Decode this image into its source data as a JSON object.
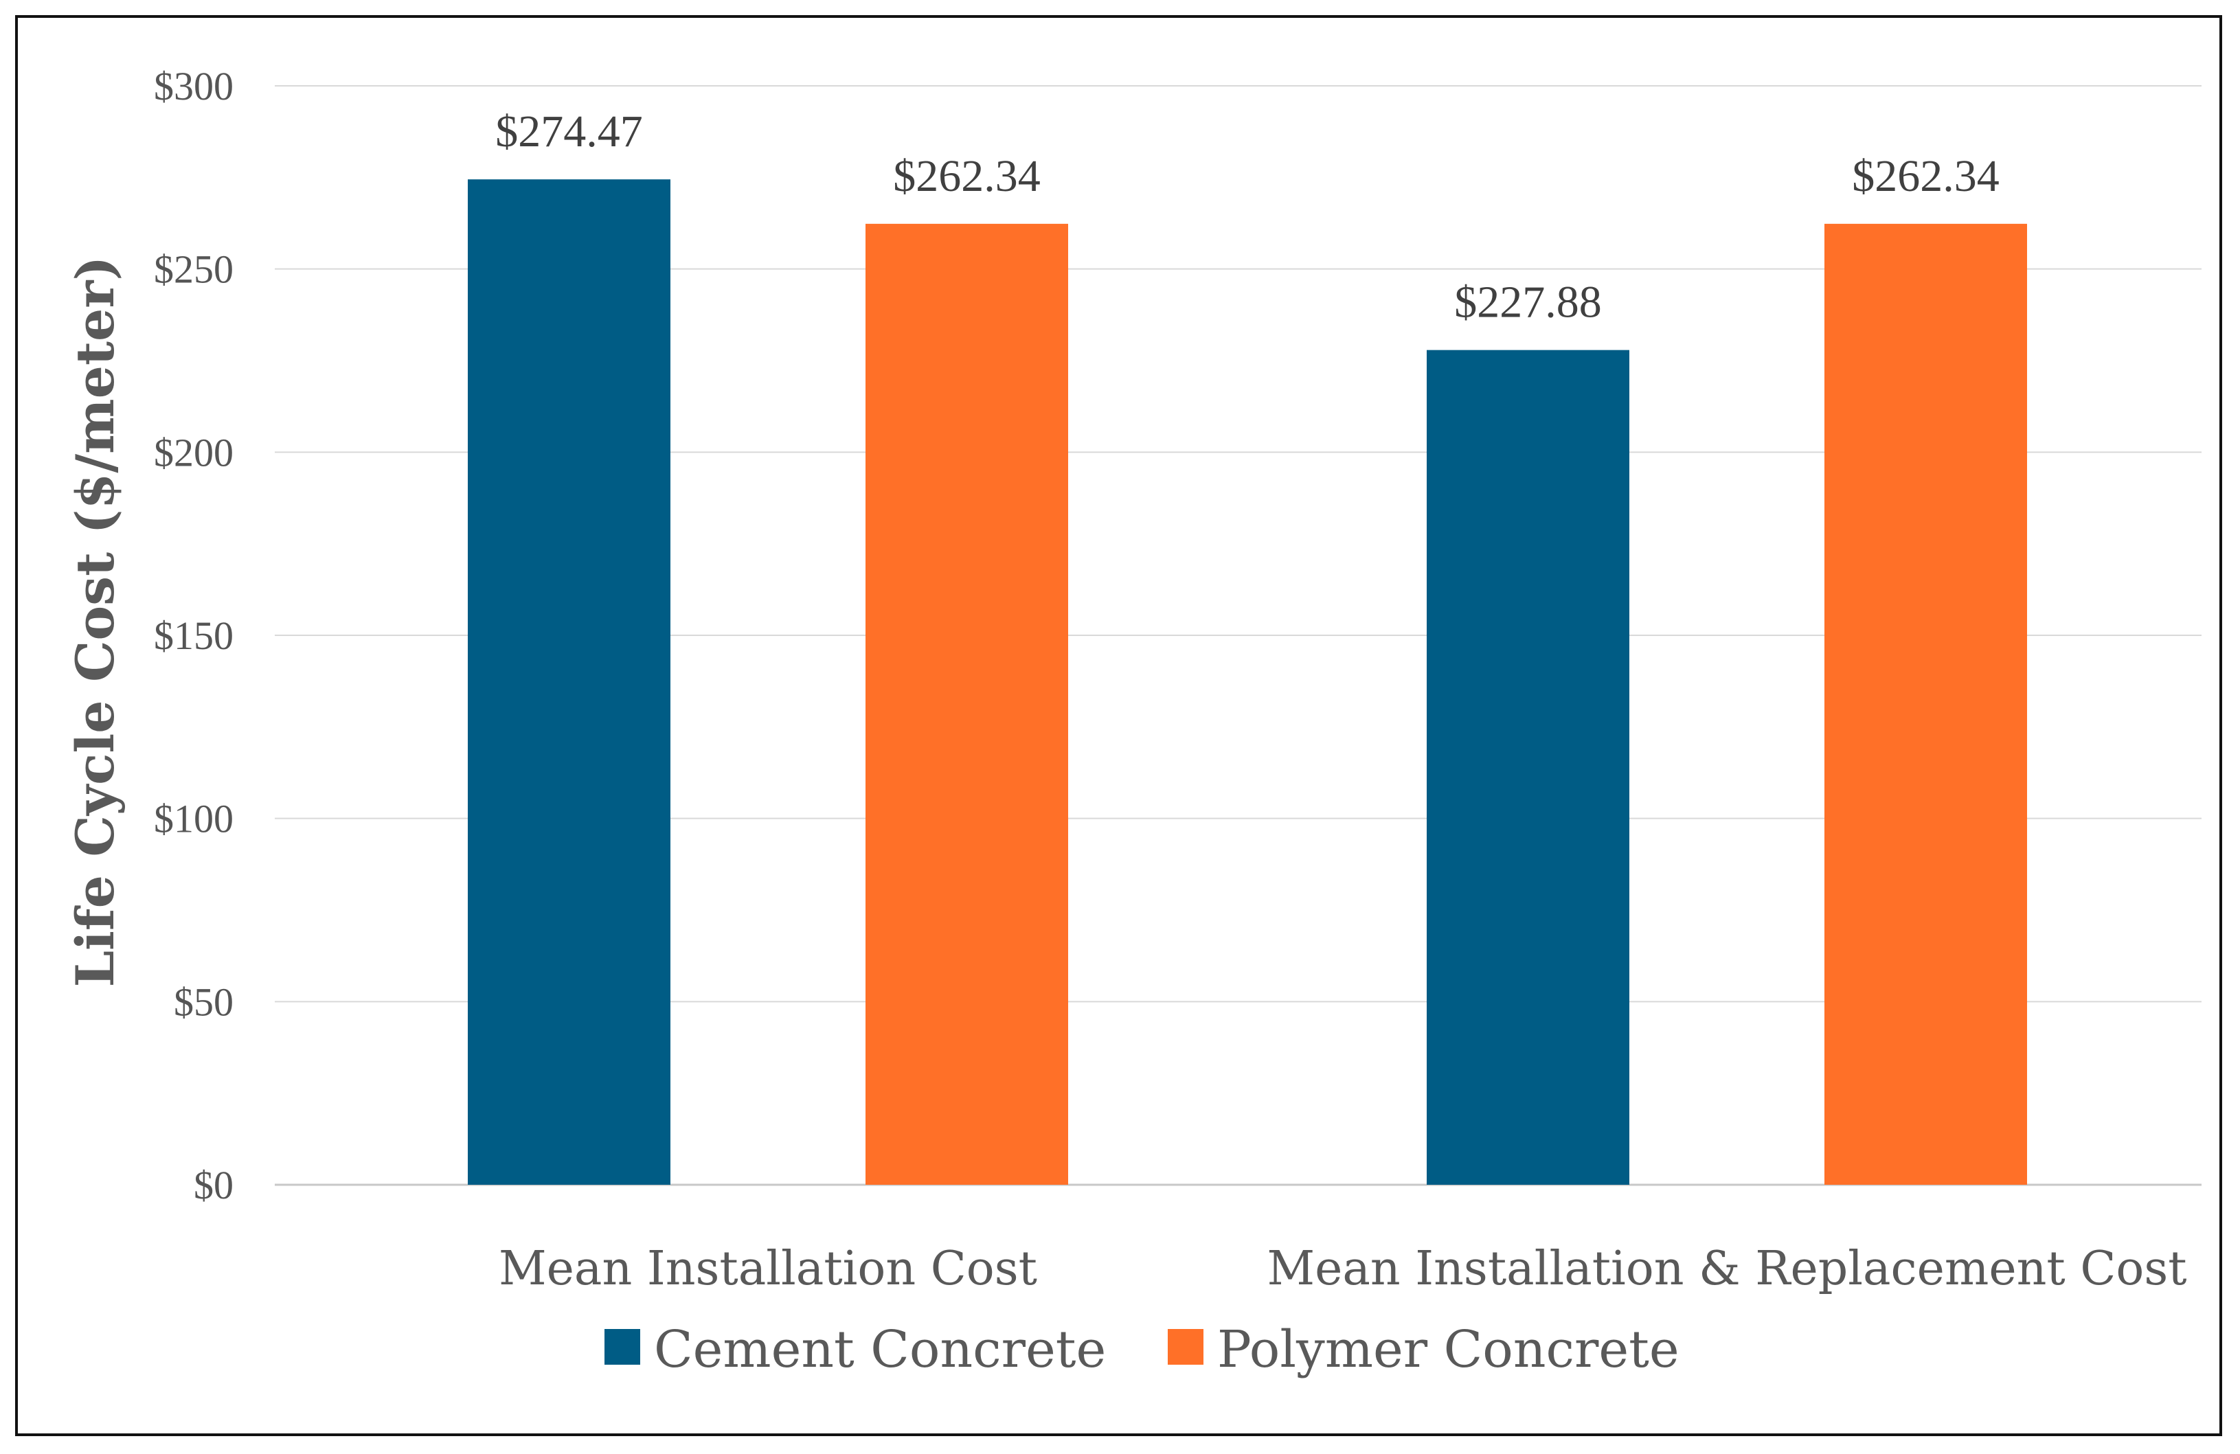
{
  "chart_data": {
    "type": "bar",
    "title": "",
    "xlabel": "",
    "ylabel": "Life Cycle Cost ($/meter)",
    "ylim": [
      0,
      300
    ],
    "yticks": [
      0,
      50,
      100,
      150,
      200,
      250,
      300
    ],
    "ytick_labels": [
      "$0",
      "$50",
      "$100",
      "$150",
      "$200",
      "$250",
      "$300"
    ],
    "grid": true,
    "legend_position": "bottom",
    "categories": [
      "Mean Installation Cost",
      "Mean Installation & Replacement Cost"
    ],
    "series": [
      {
        "name": "Cement Concrete",
        "color": "#005C85",
        "values": [
          274.47,
          227.88
        ],
        "labels": [
          "$274.47",
          "$227.88"
        ]
      },
      {
        "name": "Polymer Concrete",
        "color": "#FF7028",
        "values": [
          262.34,
          262.34
        ],
        "labels": [
          "$262.34",
          "$262.34"
        ]
      }
    ]
  }
}
